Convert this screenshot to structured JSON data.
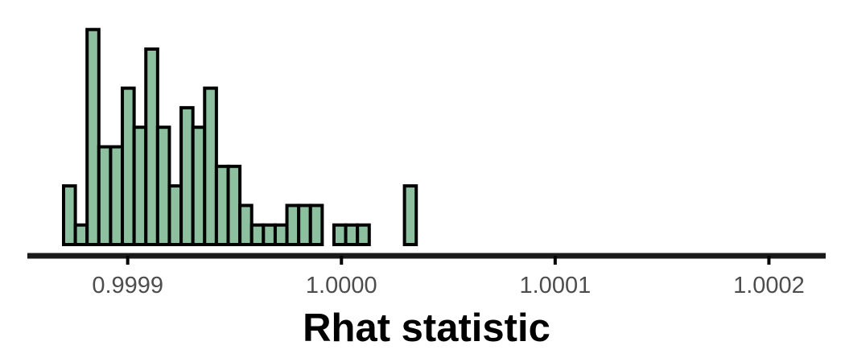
{
  "chart_data": {
    "type": "bar",
    "title": "",
    "xlabel": "Rhat statistic",
    "ylabel": "",
    "fill_color": "#8cc09f",
    "edge_color": "#000000",
    "grid": false,
    "legend": "none",
    "bin_width": 5.5e-06,
    "xlim": [
      0.99987,
      1.00021
    ],
    "ylim": [
      0,
      11
    ],
    "x_ticks": [
      0.9999,
      1.0,
      1.0001,
      1.0002
    ],
    "x_tick_labels": [
      "0.9999",
      "1.0000",
      "1.0001",
      "1.0002"
    ],
    "bins": [
      {
        "x0": 0.99987,
        "count": 3
      },
      {
        "x0": 0.9998755,
        "count": 1
      },
      {
        "x0": 0.999881,
        "count": 11
      },
      {
        "x0": 0.9998865,
        "count": 5
      },
      {
        "x0": 0.999892,
        "count": 5
      },
      {
        "x0": 0.9998975,
        "count": 8
      },
      {
        "x0": 0.999903,
        "count": 6
      },
      {
        "x0": 0.9999085,
        "count": 10
      },
      {
        "x0": 0.999914,
        "count": 6
      },
      {
        "x0": 0.9999195,
        "count": 3
      },
      {
        "x0": 0.999925,
        "count": 7
      },
      {
        "x0": 0.9999305,
        "count": 6
      },
      {
        "x0": 0.999936,
        "count": 8
      },
      {
        "x0": 0.9999415,
        "count": 4
      },
      {
        "x0": 0.999947,
        "count": 4
      },
      {
        "x0": 0.9999525,
        "count": 2
      },
      {
        "x0": 0.999958,
        "count": 1
      },
      {
        "x0": 0.9999635,
        "count": 1
      },
      {
        "x0": 0.999969,
        "count": 1
      },
      {
        "x0": 0.9999745,
        "count": 2
      },
      {
        "x0": 0.99998,
        "count": 2
      },
      {
        "x0": 0.9999855,
        "count": 2
      },
      {
        "x0": 0.999991,
        "count": 0
      },
      {
        "x0": 0.9999965,
        "count": 1
      },
      {
        "x0": 1.000002,
        "count": 1
      },
      {
        "x0": 1.0000075,
        "count": 1
      },
      {
        "x0": 1.000013,
        "count": 0
      },
      {
        "x0": 1.0000185,
        "count": 0
      },
      {
        "x0": 1.000024,
        "count": 0
      },
      {
        "x0": 1.0000295,
        "count": 3
      }
    ]
  }
}
